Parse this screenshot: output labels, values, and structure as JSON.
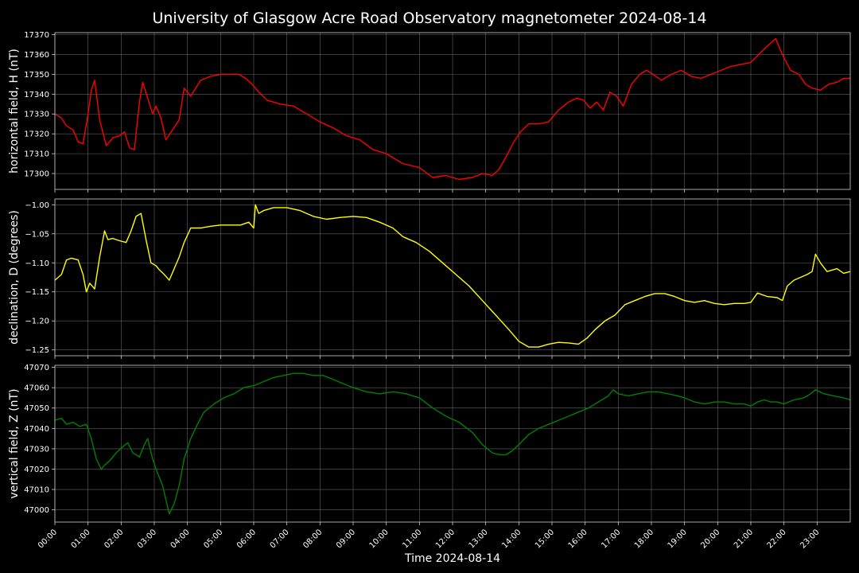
{
  "figure": {
    "title": "University of Glasgow Acre Road Observatory magnetometer 2024-08-14",
    "xlabel": "Time 2024-08-14",
    "background": "#000000"
  },
  "chart_data": [
    {
      "type": "line",
      "ylabel": "horizontal field, H (nT)",
      "ylim": [
        17292,
        17371
      ],
      "yticks": [
        17300,
        17310,
        17320,
        17330,
        17340,
        17350,
        17360,
        17370
      ],
      "ytick_labels": [
        "17300",
        "17310",
        "17320",
        "17330",
        "17340",
        "17350",
        "17360",
        "17370"
      ],
      "xlim": [
        0,
        24
      ],
      "grid": true,
      "series": [
        {
          "color": "#ff0000",
          "x": [
            0,
            0.2,
            0.35,
            0.55,
            0.7,
            0.85,
            1.0,
            1.1,
            1.2,
            1.35,
            1.55,
            1.75,
            1.95,
            2.1,
            2.25,
            2.4,
            2.55,
            2.65,
            2.8,
            2.95,
            3.05,
            3.2,
            3.35,
            3.55,
            3.75,
            3.9,
            4.1,
            4.4,
            4.7,
            5.0,
            5.3,
            5.55,
            5.75,
            5.95,
            6.15,
            6.4,
            6.8,
            7.2,
            7.6,
            8.0,
            8.4,
            8.8,
            9.2,
            9.6,
            10.0,
            10.5,
            11.0,
            11.4,
            11.8,
            12.2,
            12.6,
            12.9,
            13.2,
            13.4,
            13.6,
            13.85,
            14.05,
            14.3,
            14.6,
            14.9,
            15.2,
            15.5,
            15.75,
            15.95,
            16.15,
            16.35,
            16.55,
            16.75,
            16.95,
            17.15,
            17.4,
            17.65,
            17.85,
            18.05,
            18.3,
            18.6,
            18.9,
            19.2,
            19.5,
            19.8,
            20.1,
            20.4,
            20.7,
            21.0,
            21.3,
            21.55,
            21.75,
            21.95,
            22.2,
            22.45,
            22.65,
            22.85,
            23.1,
            23.35,
            23.6,
            23.8,
            24.0
          ],
          "y": [
            17330,
            17328,
            17324,
            17322,
            17316,
            17315,
            17330,
            17342,
            17347,
            17327,
            17314,
            17318,
            17319,
            17321,
            17313,
            17312,
            17336,
            17346,
            17338,
            17330,
            17334,
            17328,
            17317,
            17322,
            17327,
            17343,
            17339,
            17347,
            17349,
            17350,
            17350,
            17350,
            17348,
            17345,
            17341,
            17337,
            17335,
            17334,
            17330,
            17326,
            17323,
            17319,
            17317,
            17312,
            17310,
            17305,
            17303,
            17298,
            17299,
            17297,
            17298,
            17300,
            17299,
            17302,
            17308,
            17316,
            17321,
            17325,
            17325,
            17326,
            17332,
            17336,
            17338,
            17337,
            17333,
            17336,
            17332,
            17341,
            17339,
            17334,
            17345,
            17350,
            17352,
            17350,
            17347,
            17350,
            17352,
            17349,
            17348,
            17350,
            17352,
            17354,
            17355,
            17356,
            17361,
            17365,
            17368,
            17360,
            17352,
            17350,
            17345,
            17343,
            17342,
            17345,
            17346,
            17348,
            17348
          ]
        }
      ]
    },
    {
      "type": "line",
      "ylabel": "declination, D (degrees)",
      "ylim": [
        -1.26,
        -0.99
      ],
      "yticks": [
        -1.25,
        -1.2,
        -1.15,
        -1.1,
        -1.05,
        -1.0
      ],
      "ytick_labels": [
        "−1.25",
        "−1.20",
        "−1.15",
        "−1.10",
        "−1.05",
        "−1.00"
      ],
      "xlim": [
        0,
        24
      ],
      "grid": true,
      "series": [
        {
          "color": "#ffff00",
          "x": [
            0,
            0.2,
            0.35,
            0.5,
            0.7,
            0.85,
            0.95,
            1.05,
            1.2,
            1.35,
            1.5,
            1.6,
            1.75,
            1.95,
            2.15,
            2.3,
            2.45,
            2.6,
            2.75,
            2.9,
            3.05,
            3.15,
            3.3,
            3.45,
            3.6,
            3.75,
            3.9,
            4.1,
            4.4,
            4.7,
            5.0,
            5.3,
            5.6,
            5.85,
            6.0,
            6.05,
            6.15,
            6.3,
            6.6,
            7.0,
            7.4,
            7.8,
            8.2,
            8.6,
            9.0,
            9.4,
            9.8,
            10.2,
            10.5,
            10.9,
            11.3,
            11.7,
            12.1,
            12.5,
            12.9,
            13.3,
            13.7,
            14.0,
            14.3,
            14.6,
            14.9,
            15.2,
            15.5,
            15.8,
            16.05,
            16.3,
            16.6,
            16.9,
            17.2,
            17.5,
            17.8,
            18.1,
            18.4,
            18.7,
            19.0,
            19.3,
            19.6,
            19.9,
            20.2,
            20.5,
            20.8,
            21.0,
            21.2,
            21.5,
            21.8,
            21.95,
            22.1,
            22.3,
            22.5,
            22.7,
            22.85,
            22.95,
            23.1,
            23.3,
            23.6,
            23.8,
            24.0
          ],
          "y": [
            -1.13,
            -1.12,
            -1.095,
            -1.092,
            -1.095,
            -1.12,
            -1.15,
            -1.135,
            -1.145,
            -1.09,
            -1.045,
            -1.06,
            -1.058,
            -1.062,
            -1.065,
            -1.045,
            -1.02,
            -1.015,
            -1.06,
            -1.1,
            -1.105,
            -1.112,
            -1.12,
            -1.13,
            -1.11,
            -1.09,
            -1.065,
            -1.04,
            -1.04,
            -1.037,
            -1.035,
            -1.035,
            -1.035,
            -1.03,
            -1.04,
            -1.0,
            -1.015,
            -1.01,
            -1.005,
            -1.005,
            -1.01,
            -1.02,
            -1.025,
            -1.022,
            -1.02,
            -1.022,
            -1.03,
            -1.04,
            -1.055,
            -1.065,
            -1.08,
            -1.1,
            -1.12,
            -1.14,
            -1.165,
            -1.19,
            -1.215,
            -1.235,
            -1.245,
            -1.245,
            -1.24,
            -1.237,
            -1.238,
            -1.24,
            -1.23,
            -1.215,
            -1.2,
            -1.19,
            -1.172,
            -1.165,
            -1.158,
            -1.153,
            -1.153,
            -1.158,
            -1.165,
            -1.168,
            -1.165,
            -1.17,
            -1.172,
            -1.17,
            -1.17,
            -1.168,
            -1.152,
            -1.158,
            -1.16,
            -1.165,
            -1.14,
            -1.13,
            -1.125,
            -1.12,
            -1.115,
            -1.085,
            -1.1,
            -1.115,
            -1.11,
            -1.118,
            -1.115
          ]
        }
      ]
    },
    {
      "type": "line",
      "ylabel": "vertical field, Z (nT)",
      "ylim": [
        46994,
        47071
      ],
      "yticks": [
        47000,
        47010,
        47020,
        47030,
        47040,
        47050,
        47060,
        47070
      ],
      "ytick_labels": [
        "47000",
        "47010",
        "47020",
        "47030",
        "47040",
        "47050",
        "47060",
        "47070"
      ],
      "xlim": [
        0,
        24
      ],
      "grid": true,
      "series": [
        {
          "color": "#008000",
          "x": [
            0,
            0.2,
            0.35,
            0.55,
            0.75,
            0.95,
            1.1,
            1.25,
            1.4,
            1.5,
            1.65,
            1.85,
            2.05,
            2.2,
            2.35,
            2.55,
            2.7,
            2.8,
            2.95,
            3.1,
            3.25,
            3.35,
            3.45,
            3.6,
            3.75,
            3.9,
            4.1,
            4.3,
            4.5,
            4.8,
            5.1,
            5.4,
            5.7,
            6.0,
            6.3,
            6.6,
            6.9,
            7.2,
            7.5,
            7.8,
            8.1,
            8.4,
            8.7,
            9.0,
            9.4,
            9.8,
            10.2,
            10.6,
            11.0,
            11.4,
            11.8,
            12.2,
            12.6,
            12.9,
            13.2,
            13.45,
            13.6,
            13.8,
            14.0,
            14.3,
            14.6,
            14.9,
            15.2,
            15.5,
            15.8,
            16.1,
            16.4,
            16.7,
            16.85,
            17.0,
            17.3,
            17.6,
            17.9,
            18.2,
            18.5,
            18.8,
            19.0,
            19.3,
            19.6,
            19.9,
            20.2,
            20.5,
            20.8,
            21.0,
            21.2,
            21.4,
            21.6,
            21.8,
            22.0,
            22.3,
            22.6,
            22.8,
            22.95,
            23.2,
            23.5,
            23.8,
            24.0
          ],
          "y": [
            47044,
            47045,
            47042,
            47043,
            47041,
            47042,
            47035,
            47025,
            47020,
            47022,
            47024,
            47028,
            47031,
            47033,
            47028,
            47026,
            47032,
            47035,
            47025,
            47018,
            47012,
            47005,
            46998,
            47003,
            47012,
            47025,
            47035,
            47042,
            47048,
            47052,
            47055,
            47057,
            47060,
            47061,
            47063,
            47065,
            47066,
            47067,
            47067,
            47066,
            47066,
            47064,
            47062,
            47060,
            47058,
            47057,
            47058,
            47057,
            47055,
            47050,
            47046,
            47043,
            47038,
            47032,
            47028,
            47027,
            47027,
            47029,
            47032,
            47037,
            47040,
            47042,
            47044,
            47046,
            47048,
            47050,
            47053,
            47056,
            47059,
            47057,
            47056,
            47057,
            47058,
            47058,
            47057,
            47056,
            47055,
            47053,
            47052,
            47053,
            47053,
            47052,
            47052,
            47051,
            47053,
            47054,
            47053,
            47053,
            47052,
            47054,
            47055,
            47057,
            47059,
            47057,
            47056,
            47055,
            47054
          ]
        }
      ]
    }
  ],
  "xaxis": {
    "ticks": [
      0,
      1,
      2,
      3,
      4,
      5,
      6,
      7,
      8,
      9,
      10,
      11,
      12,
      13,
      14,
      15,
      16,
      17,
      18,
      19,
      20,
      21,
      22,
      23
    ],
    "tick_labels": [
      "00:00",
      "01:00",
      "02:00",
      "03:00",
      "04:00",
      "05:00",
      "06:00",
      "07:00",
      "08:00",
      "09:00",
      "10:00",
      "11:00",
      "12:00",
      "13:00",
      "14:00",
      "15:00",
      "16:00",
      "17:00",
      "18:00",
      "19:00",
      "20:00",
      "21:00",
      "22:00",
      "23:00"
    ]
  }
}
